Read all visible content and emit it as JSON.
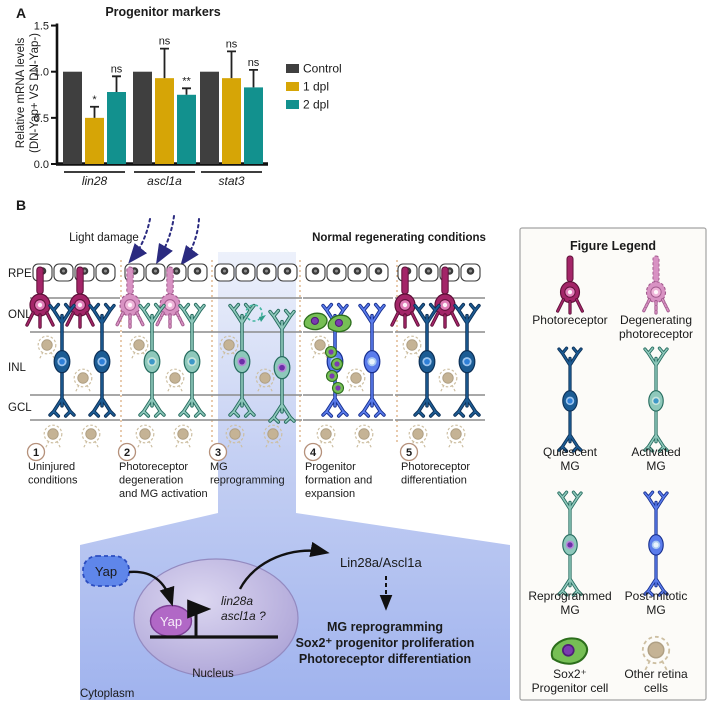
{
  "panels": {
    "a": "A",
    "b": "B"
  },
  "chart_data": {
    "type": "bar",
    "title": "Progenitor markers",
    "ylabel_lines": [
      "Relative mRNA levels",
      "(DN-Yap+ VS DN-Yap-)"
    ],
    "categories": [
      "lin28",
      "ascl1a",
      "stat3"
    ],
    "yticks": [
      "0.0",
      "0.5",
      "1.0",
      "1.5"
    ],
    "ylim": [
      0,
      1.5
    ],
    "legend_position": "right",
    "series": [
      {
        "name": "Control",
        "color": "#3f3f3f",
        "values": [
          1.0,
          1.0,
          1.0
        ],
        "errors": [
          0,
          0,
          0
        ],
        "sig": [
          "",
          "",
          ""
        ]
      },
      {
        "name": "1 dpl",
        "color": "#d6a506",
        "values": [
          0.5,
          0.93,
          0.93
        ],
        "errors": [
          0.12,
          0.32,
          0.29
        ],
        "sig": [
          "*",
          "ns",
          "ns"
        ]
      },
      {
        "name": "2 dpl",
        "color": "#12918e",
        "values": [
          0.78,
          0.75,
          0.83
        ],
        "errors": [
          0.17,
          0.07,
          0.19
        ],
        "sig": [
          "ns",
          "**",
          "ns"
        ]
      }
    ]
  },
  "panel_b": {
    "headers": {
      "light_damage": "Light damage",
      "normal": "Normal regenerating conditions"
    },
    "layers": [
      "RPE",
      "ONL",
      "INL",
      "GCL"
    ],
    "stages": [
      {
        "num": "1",
        "lines": [
          "Uninjured",
          "conditions"
        ]
      },
      {
        "num": "2",
        "lines": [
          "Photoreceptor",
          "degeneration",
          "and MG activation"
        ]
      },
      {
        "num": "3",
        "lines": [
          "MG",
          "reprogramming"
        ]
      },
      {
        "num": "4",
        "lines": [
          "Progenitor",
          "formation and",
          "expansion"
        ]
      },
      {
        "num": "5",
        "lines": [
          "Photoreceptor",
          "differentiation"
        ]
      }
    ],
    "pathway": {
      "yap_cytoplasm": "Yap",
      "yap_nucleus": "Yap",
      "genes_lines": [
        "lin28a",
        "ascl1a ?"
      ],
      "output": "Lin28a/Ascl1a",
      "effects_lines": [
        "MG reprogramming",
        "Sox2⁺ progenitor proliferation",
        "Photoreceptor differentiation"
      ],
      "nucleus_label": "Nucleus",
      "cytoplasm_label": "Cytoplasm"
    },
    "legend": {
      "title": "Figure Legend",
      "items": [
        {
          "type": "photoreceptor",
          "label_lines": [
            "Photoreceptor"
          ]
        },
        {
          "type": "degen-photoreceptor",
          "label_lines": [
            "Degenerating",
            "photoreceptor"
          ]
        },
        {
          "type": "quiescent-mg",
          "label_lines": [
            "Quiescent",
            "MG"
          ]
        },
        {
          "type": "activated-mg",
          "label_lines": [
            "Activated",
            "MG"
          ]
        },
        {
          "type": "reprogrammed-mg",
          "label_lines": [
            "Reprogrammed",
            "MG"
          ]
        },
        {
          "type": "postmitotic-mg",
          "label_lines": [
            "Post-mitotic",
            "MG"
          ]
        },
        {
          "type": "sox2-progenitor",
          "label_lines": [
            "Sox2⁺",
            "Progenitor cell"
          ]
        },
        {
          "type": "other-retina",
          "label_lines": [
            "Other retina",
            "cells"
          ]
        }
      ]
    },
    "colors": {
      "photoreceptor_body": "#a32568",
      "photoreceptor_outline": "#5e1038",
      "photoreceptor_nucleus": "#e07db8",
      "degen_body": "#d892c3",
      "degen_outline": "#a25a8d",
      "degen_nucleus": "#eeb3d8",
      "quiescent_body": "#1c5c94",
      "quiescent_outline": "#0d3057",
      "quiescent_nucleus": "#2f80d8",
      "quiescent_nucleus_ring": "#9cc4ee",
      "activated_body": "#8ec8bb",
      "activated_outline": "#256b5e",
      "activated_nucleus": "#3f98c8",
      "activated_nucleus_ring": "#c5e3db",
      "reprogrammed_nucleus": "#6c2fa8",
      "reprogrammed_nucleus_ring": "#b58ad8",
      "postmitotic_body": "#5a7cec",
      "postmitotic_outline": "#172f8f",
      "postmitotic_nucleus": "#e8f3fc",
      "postmitotic_nucleus_ring": "#a8c8f2",
      "sox2_body": "#76bf55",
      "sox2_outline": "#2c6e1c",
      "sox2_nucleus": "#7a3bb0",
      "other_body": "#c5b395",
      "other_outline": "#b0a084",
      "other_halo": "#cdbfa2",
      "rpe_nucleus": "#3c3c3c",
      "rpe_outline": "#3a3a3a",
      "separator": "#d9a877",
      "layer_line": "#8c8c8c",
      "light_arrow": "#2b2b80",
      "stage_circle": "#b5917b",
      "band_top": "#edf1fb",
      "band_mid": "#c5d0f3",
      "band_bottom": "#a0b3ee",
      "nucleus_fill": "#b2aadc",
      "nucleus_center": "#dcd7f1",
      "nucleus_stroke": "#938ac0",
      "yap_cyto_fill": "#5f86ea",
      "yap_cyto_stroke": "#2c4dc0",
      "yap_nuc_fill": "#b168c6",
      "yap_nuc_stroke": "#7d3f96",
      "cycle_arrow": "#45b7a2",
      "legend_border": "#a3a3a3",
      "legend_bg": "#fcfbf8"
    }
  }
}
